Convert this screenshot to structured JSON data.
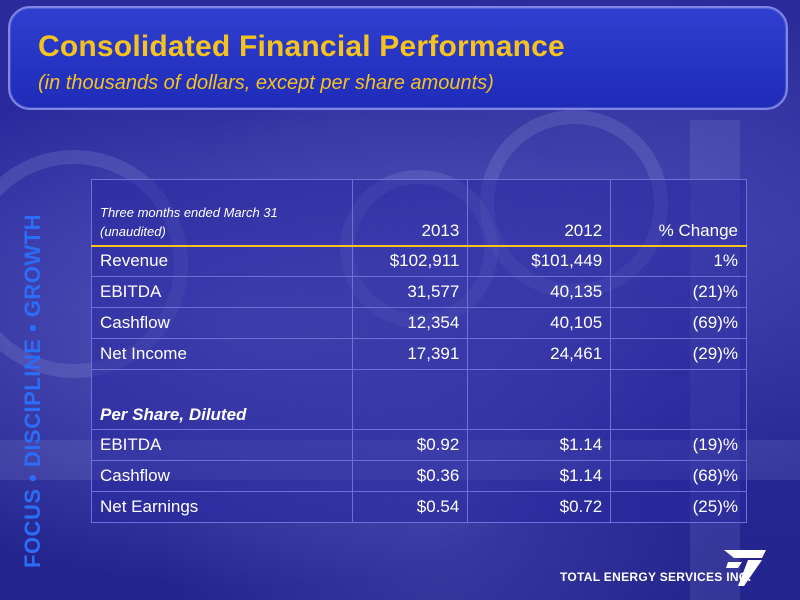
{
  "header": {
    "title": "Consolidated Financial Performance",
    "subtitle": "(in thousands of dollars, except per share amounts)"
  },
  "side_banner": "FOCUS • DISCIPLINE • GROWTH",
  "table": {
    "header_label_line1": "Three months ended March 31",
    "header_label_line2": "(unaudited)",
    "columns": [
      "2013",
      "2012",
      "% Change"
    ],
    "rows": [
      {
        "label": "Revenue",
        "v2013": "$102,911",
        "v2012": "$101,449",
        "change": "1%"
      },
      {
        "label": "EBITDA",
        "v2013": "31,577",
        "v2012": "40,135",
        "change": "(21)%"
      },
      {
        "label": "Cashflow",
        "v2013": "12,354",
        "v2012": "40,105",
        "change": "(69)%"
      },
      {
        "label": "Net Income",
        "v2013": "17,391",
        "v2012": "24,461",
        "change": "(29)%"
      }
    ],
    "section_label": "Per Share, Diluted",
    "per_share_rows": [
      {
        "label": "EBITDA",
        "v2013": "$0.92",
        "v2012": "$1.14",
        "change": "(19)%"
      },
      {
        "label": "Cashflow",
        "v2013": "$0.36",
        "v2012": "$1.14",
        "change": "(68)%"
      },
      {
        "label": "Net Earnings",
        "v2013": "$0.54",
        "v2012": "$0.72",
        "change": "(25)%"
      }
    ]
  },
  "footer": {
    "company_name": "TOTAL ENERGY SERVICES INC.",
    "logo_icon": "company-logo-icon"
  },
  "colors": {
    "title": "#f4c320",
    "side_banner": "#2d6cf5",
    "background": "#2a2a9a"
  }
}
